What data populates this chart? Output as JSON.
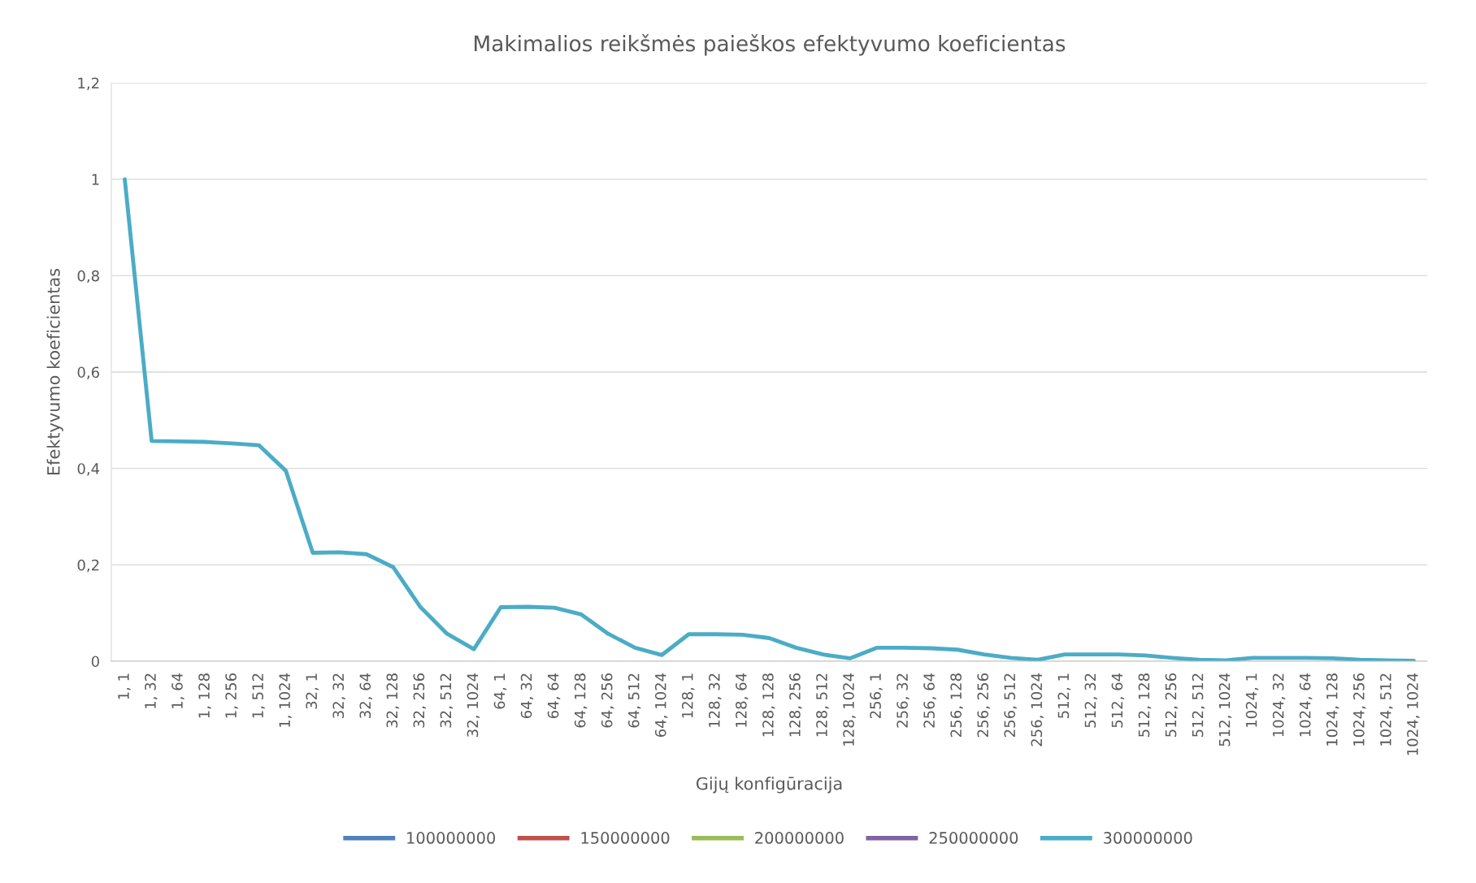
{
  "chart_data": {
    "type": "line",
    "title": "Makimalios reikšmės paieškos efektyvumo koeficientas",
    "xlabel": "Gijų konfigūracija",
    "ylabel": "Efektyvumo koeficientas",
    "categories": [
      "1, 1",
      "1, 32",
      "1, 64",
      "1, 128",
      "1, 256",
      "1, 512",
      "1, 1024",
      "32, 1",
      "32, 32",
      "32, 64",
      "32, 128",
      "32, 256",
      "32, 512",
      "32, 1024",
      "64, 1",
      "64, 32",
      "64, 64",
      "64, 128",
      "64, 256",
      "64, 512",
      "64, 1024",
      "128, 1",
      "128, 32",
      "128, 64",
      "128, 128",
      "128, 256",
      "128, 512",
      "128, 1024",
      "256, 1",
      "256, 32",
      "256, 64",
      "256, 128",
      "256, 256",
      "256, 512",
      "256, 1024",
      "512, 1",
      "512, 32",
      "512, 64",
      "512, 128",
      "512, 256",
      "512, 512",
      "512, 1024",
      "1024, 1",
      "1024, 32",
      "1024, 64",
      "1024, 128",
      "1024, 256",
      "1024, 512",
      "1024, 1024"
    ],
    "series": [
      {
        "name": "100000000",
        "color": "#4f81bd",
        "values": [
          null,
          null,
          null,
          null,
          null,
          null,
          null,
          null,
          null,
          null,
          null,
          null,
          null,
          null,
          null,
          null,
          null,
          null,
          null,
          null,
          null,
          null,
          null,
          null,
          null,
          null,
          null,
          null,
          null,
          null,
          null,
          null,
          null,
          null,
          null,
          null,
          null,
          null,
          null,
          null,
          null,
          null,
          null,
          null,
          null,
          null,
          null,
          null,
          null
        ]
      },
      {
        "name": "150000000",
        "color": "#c0504d",
        "values": [
          null,
          null,
          null,
          null,
          null,
          null,
          null,
          null,
          null,
          null,
          null,
          null,
          null,
          null,
          null,
          null,
          null,
          null,
          null,
          null,
          null,
          null,
          null,
          null,
          null,
          null,
          null,
          null,
          null,
          null,
          null,
          null,
          null,
          null,
          null,
          null,
          null,
          null,
          null,
          null,
          null,
          null,
          null,
          null,
          null,
          null,
          null,
          null,
          null
        ]
      },
      {
        "name": "200000000",
        "color": "#9bbb59",
        "values": [
          null,
          null,
          null,
          null,
          null,
          null,
          null,
          null,
          null,
          null,
          null,
          null,
          null,
          null,
          null,
          null,
          null,
          null,
          null,
          null,
          null,
          null,
          null,
          null,
          null,
          null,
          null,
          null,
          null,
          null,
          null,
          null,
          null,
          null,
          null,
          null,
          null,
          null,
          null,
          null,
          null,
          null,
          null,
          null,
          null,
          null,
          null,
          null,
          null
        ]
      },
      {
        "name": "250000000",
        "color": "#8064a2",
        "values": [
          null,
          null,
          null,
          null,
          null,
          null,
          null,
          null,
          null,
          null,
          null,
          null,
          null,
          null,
          null,
          null,
          null,
          null,
          null,
          null,
          null,
          null,
          null,
          null,
          null,
          null,
          null,
          null,
          null,
          null,
          null,
          null,
          null,
          null,
          null,
          null,
          null,
          null,
          null,
          null,
          null,
          null,
          null,
          null,
          null,
          null,
          null,
          null,
          null
        ]
      },
      {
        "name": "300000000",
        "color": "#4bacc6",
        "values": [
          1,
          0.457,
          0.456,
          0.455,
          0.452,
          0.448,
          0.395,
          0.225,
          0.226,
          0.222,
          0.195,
          0.113,
          0.057,
          0.025,
          0.112,
          0.113,
          0.111,
          0.097,
          0.057,
          0.028,
          0.013,
          0.056,
          0.056,
          0.055,
          0.048,
          0.028,
          0.014,
          0.006,
          0.028,
          0.028,
          0.027,
          0.024,
          0.014,
          0.007,
          0.003,
          0.014,
          0.014,
          0.014,
          0.012,
          0.007,
          0.003,
          0.002,
          0.007,
          0.007,
          0.007,
          0.006,
          0.003,
          0.002,
          0.001
        ]
      }
    ],
    "ylim": [
      0,
      1.2
    ],
    "yticks": [
      0,
      {
        "value": 0.2,
        "label": "0,2"
      },
      {
        "value": 0.4,
        "label": "0,4"
      },
      {
        "value": 0.6,
        "label": "0,6"
      },
      {
        "value": 0.8,
        "label": "0,8"
      },
      1,
      {
        "value": 1.2,
        "label": "1,2"
      }
    ],
    "grid": "y",
    "legend": "bottom",
    "marker": "none",
    "line_style": "solid"
  }
}
